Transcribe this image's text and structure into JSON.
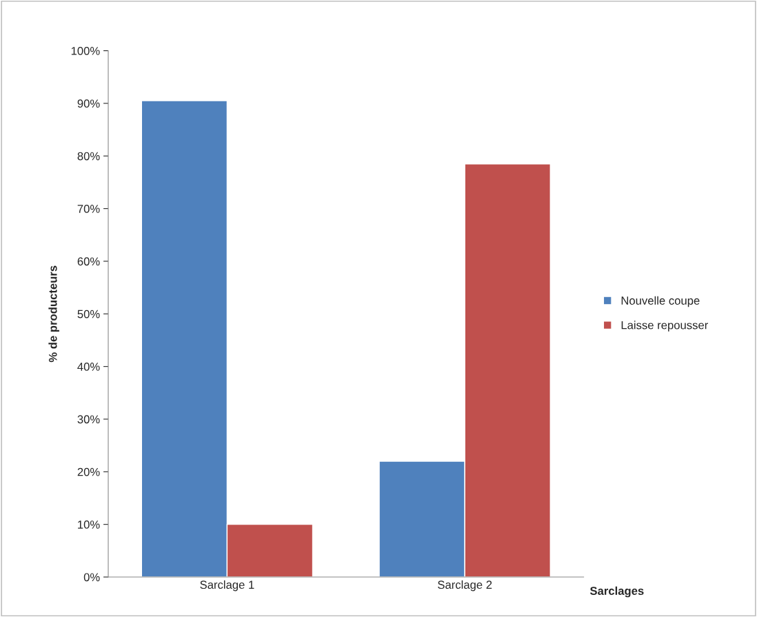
{
  "chart_data": {
    "type": "bar",
    "ylabel": "% de producteurs",
    "xlabel": "Sarclages",
    "categories": [
      "Sarclage 1",
      "Sarclage 2"
    ],
    "series": [
      {
        "name": "Nouvelle coupe",
        "color": "#4f81bd",
        "values": [
          90.5,
          22
        ]
      },
      {
        "name": "Laisse repousser",
        "color": "#c0504d",
        "values": [
          10,
          78.5
        ]
      }
    ],
    "ylim": [
      0,
      100
    ],
    "yticks": [
      {
        "value": 0,
        "label": "0%"
      },
      {
        "value": 10,
        "label": "10%"
      },
      {
        "value": 20,
        "label": "20%"
      },
      {
        "value": 30,
        "label": "30%"
      },
      {
        "value": 40,
        "label": "40%"
      },
      {
        "value": 50,
        "label": "50%"
      },
      {
        "value": 60,
        "label": "60%"
      },
      {
        "value": 70,
        "label": "70%"
      },
      {
        "value": 80,
        "label": "80%"
      },
      {
        "value": 90,
        "label": "90%"
      },
      {
        "value": 100,
        "label": "100%"
      }
    ],
    "grid": false,
    "legend": "right"
  }
}
